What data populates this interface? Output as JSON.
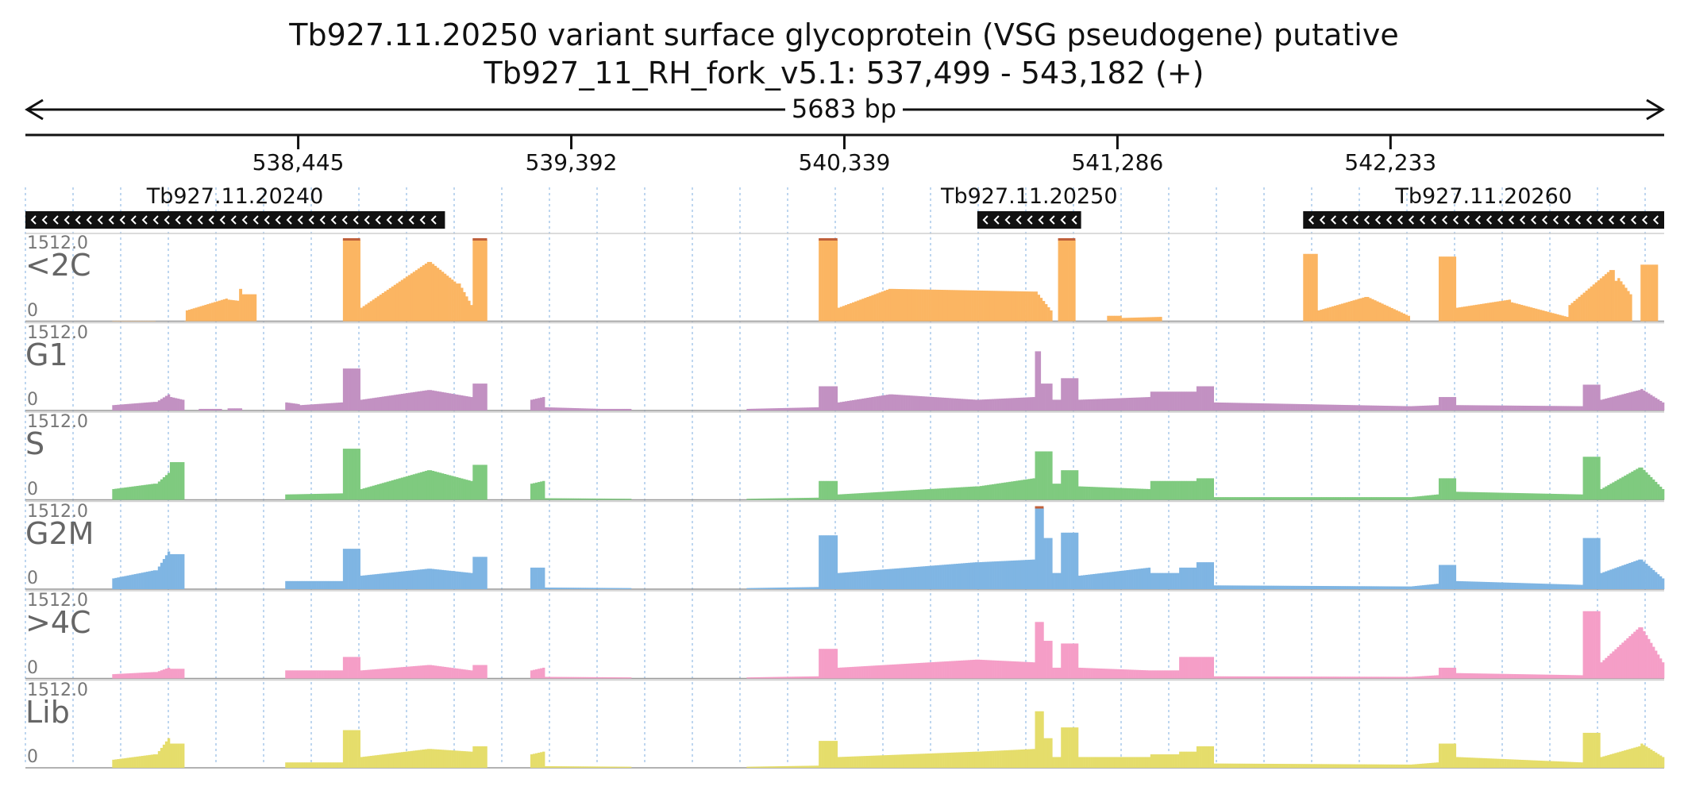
{
  "title": "Tb927.11.20250  variant surface glycoprotein (VSG  pseudogene)  putative",
  "subtitle": "Tb927_11_RH_fork_v5.1: 537,499 - 543,182 (+)",
  "chart_data": {
    "type": "area",
    "region": {
      "chromosome": "Tb927_11_RH_fork_v5.1",
      "start": 537499,
      "end": 543182,
      "strand": "+"
    },
    "span_label": "5683 bp",
    "x_ticks": [
      {
        "value": 538445,
        "label": "538,445"
      },
      {
        "value": 539392,
        "label": "539,392"
      },
      {
        "value": 540339,
        "label": "540,339"
      },
      {
        "value": 541286,
        "label": "541,286"
      },
      {
        "value": 542233,
        "label": "542,233"
      }
    ],
    "genes": [
      {
        "name": "Tb927.11.20240",
        "start": 537499,
        "end": 538954,
        "strand": "-"
      },
      {
        "name": "Tb927.11.20250",
        "start": 540800,
        "end": 541160,
        "strand": "-"
      },
      {
        "name": "Tb927.11.20260",
        "start": 541930,
        "end": 543182,
        "strand": "-"
      }
    ],
    "ylim": [
      0,
      1512.0
    ],
    "y_max_label": "1512.0",
    "y_min_label": "0",
    "series": [
      {
        "name": "<2C",
        "color": "#fbb562",
        "blocks": [
          [
            537800,
            537950,
            5,
            5
          ],
          [
            538050,
            538120,
            5,
            5
          ],
          [
            538050,
            538050,
            0,
            0
          ],
          [
            538055,
            538200,
            200,
            420
          ],
          [
            538200,
            538240,
            400,
            380
          ],
          [
            538240,
            538240,
            300,
            300
          ],
          [
            538240,
            538250,
            600,
            600
          ],
          [
            538250,
            538300,
            500,
            500
          ],
          [
            538600,
            538660,
            1512,
            1512
          ],
          [
            538660,
            538900,
            250,
            1100
          ],
          [
            538900,
            539000,
            1100,
            700
          ],
          [
            539000,
            539050,
            700,
            300
          ],
          [
            539050,
            539100,
            1512,
            1512
          ],
          [
            540250,
            540315,
            1512,
            1512
          ],
          [
            540315,
            540500,
            250,
            600
          ],
          [
            540500,
            541000,
            600,
            550
          ],
          [
            541000,
            541060,
            550,
            200
          ],
          [
            541080,
            541140,
            1512,
            1512
          ],
          [
            541250,
            541300,
            100,
            100
          ],
          [
            541300,
            541440,
            60,
            80
          ],
          [
            541930,
            541980,
            1250,
            1250
          ],
          [
            541980,
            542150,
            200,
            450
          ],
          [
            542150,
            542300,
            450,
            100
          ],
          [
            542400,
            542460,
            1200,
            1200
          ],
          [
            542460,
            542650,
            250,
            400
          ],
          [
            542650,
            542850,
            350,
            80
          ],
          [
            542850,
            543000,
            300,
            950
          ],
          [
            543000,
            543020,
            950,
            750
          ],
          [
            543020,
            543070,
            800,
            500
          ],
          [
            543070,
            543090,
            0,
            0
          ],
          [
            543100,
            543160,
            1050,
            1050
          ]
        ]
      },
      {
        "name": "G1",
        "color": "#c291c2",
        "blocks": [
          [
            537800,
            537950,
            100,
            160
          ],
          [
            537950,
            538000,
            160,
            300
          ],
          [
            538000,
            538050,
            250,
            200
          ],
          [
            538100,
            538180,
            30,
            30
          ],
          [
            538200,
            538250,
            40,
            40
          ],
          [
            538400,
            538450,
            150,
            120
          ],
          [
            538450,
            538600,
            100,
            150
          ],
          [
            538600,
            538660,
            780,
            780
          ],
          [
            538660,
            538900,
            200,
            380
          ],
          [
            538900,
            539050,
            380,
            250
          ],
          [
            539050,
            539100,
            500,
            500
          ],
          [
            539250,
            539300,
            200,
            250
          ],
          [
            539300,
            539500,
            60,
            30
          ],
          [
            539500,
            539600,
            30,
            30
          ],
          [
            540000,
            540250,
            30,
            60
          ],
          [
            540250,
            540315,
            450,
            450
          ],
          [
            540315,
            540500,
            150,
            300
          ],
          [
            540500,
            540800,
            300,
            200
          ],
          [
            540800,
            541000,
            200,
            250
          ],
          [
            541000,
            541020,
            1100,
            1100
          ],
          [
            541020,
            541060,
            500,
            500
          ],
          [
            541060,
            541090,
            200,
            200
          ],
          [
            541090,
            541150,
            600,
            600
          ],
          [
            541150,
            541400,
            200,
            250
          ],
          [
            541400,
            541500,
            350,
            350
          ],
          [
            541500,
            541560,
            350,
            350
          ],
          [
            541560,
            541620,
            450,
            450
          ],
          [
            541620,
            542300,
            150,
            80
          ],
          [
            542300,
            542400,
            80,
            100
          ],
          [
            542400,
            542460,
            250,
            250
          ],
          [
            542460,
            542900,
            100,
            80
          ],
          [
            542900,
            542960,
            480,
            480
          ],
          [
            542960,
            543100,
            200,
            380
          ],
          [
            543100,
            543182,
            400,
            150
          ]
        ]
      },
      {
        "name": "S",
        "color": "#7fca7f",
        "blocks": [
          [
            537800,
            537950,
            200,
            300
          ],
          [
            537950,
            538000,
            300,
            500
          ],
          [
            538000,
            538050,
            700,
            700
          ],
          [
            538400,
            538600,
            100,
            120
          ],
          [
            538600,
            538660,
            950,
            950
          ],
          [
            538660,
            538900,
            200,
            550
          ],
          [
            538900,
            539050,
            550,
            350
          ],
          [
            539050,
            539100,
            650,
            650
          ],
          [
            539250,
            539300,
            300,
            350
          ],
          [
            539300,
            539600,
            30,
            20
          ],
          [
            540000,
            540250,
            20,
            40
          ],
          [
            540250,
            540315,
            350,
            350
          ],
          [
            540315,
            540800,
            100,
            250
          ],
          [
            540800,
            541000,
            250,
            400
          ],
          [
            541000,
            541060,
            900,
            900
          ],
          [
            541060,
            541090,
            300,
            300
          ],
          [
            541090,
            541150,
            550,
            550
          ],
          [
            541150,
            541400,
            250,
            200
          ],
          [
            541400,
            541500,
            350,
            350
          ],
          [
            541500,
            541560,
            350,
            350
          ],
          [
            541560,
            541620,
            400,
            400
          ],
          [
            541620,
            542300,
            50,
            50
          ],
          [
            542300,
            542400,
            50,
            100
          ],
          [
            542400,
            542460,
            400,
            400
          ],
          [
            542460,
            542900,
            150,
            100
          ],
          [
            542900,
            542960,
            800,
            800
          ],
          [
            542960,
            543100,
            200,
            600
          ],
          [
            543100,
            543182,
            600,
            200
          ]
        ]
      },
      {
        "name": "G2M",
        "color": "#7fb5e3",
        "blocks": [
          [
            537800,
            537950,
            200,
            350
          ],
          [
            537950,
            538000,
            350,
            700
          ],
          [
            538000,
            538050,
            650,
            650
          ],
          [
            538400,
            538600,
            150,
            150
          ],
          [
            538600,
            538660,
            750,
            750
          ],
          [
            538660,
            538900,
            250,
            380
          ],
          [
            538900,
            539050,
            380,
            300
          ],
          [
            539050,
            539100,
            600,
            600
          ],
          [
            539250,
            539300,
            400,
            400
          ],
          [
            539300,
            539600,
            30,
            20
          ],
          [
            540000,
            540250,
            20,
            40
          ],
          [
            540250,
            540315,
            1000,
            1000
          ],
          [
            540315,
            540800,
            300,
            500
          ],
          [
            540800,
            541000,
            500,
            550
          ],
          [
            541000,
            541030,
            1512,
            1512
          ],
          [
            541030,
            541060,
            950,
            950
          ],
          [
            541060,
            541090,
            300,
            300
          ],
          [
            541090,
            541150,
            1050,
            1050
          ],
          [
            541150,
            541400,
            250,
            400
          ],
          [
            541400,
            541500,
            300,
            300
          ],
          [
            541500,
            541560,
            400,
            400
          ],
          [
            541560,
            541620,
            500,
            500
          ],
          [
            541620,
            542300,
            70,
            50
          ],
          [
            542300,
            542400,
            50,
            100
          ],
          [
            542400,
            542460,
            450,
            450
          ],
          [
            542460,
            542900,
            150,
            80
          ],
          [
            542900,
            542960,
            950,
            950
          ],
          [
            542960,
            543100,
            300,
            550
          ],
          [
            543100,
            543182,
            550,
            200
          ]
        ]
      },
      {
        "name": ">4C",
        "color": "#f59ec7",
        "blocks": [
          [
            537800,
            537950,
            80,
            120
          ],
          [
            537950,
            538000,
            120,
            200
          ],
          [
            538000,
            538050,
            180,
            180
          ],
          [
            538400,
            538600,
            150,
            150
          ],
          [
            538600,
            538660,
            400,
            400
          ],
          [
            538660,
            538900,
            150,
            250
          ],
          [
            538900,
            539050,
            250,
            150
          ],
          [
            539050,
            539100,
            250,
            250
          ],
          [
            539250,
            539300,
            150,
            200
          ],
          [
            539300,
            539600,
            30,
            20
          ],
          [
            540000,
            540250,
            20,
            40
          ],
          [
            540250,
            540315,
            550,
            550
          ],
          [
            540315,
            540800,
            200,
            350
          ],
          [
            540800,
            541000,
            350,
            300
          ],
          [
            541000,
            541030,
            1050,
            1050
          ],
          [
            541030,
            541060,
            700,
            700
          ],
          [
            541060,
            541090,
            200,
            200
          ],
          [
            541090,
            541150,
            650,
            650
          ],
          [
            541150,
            541400,
            200,
            150
          ],
          [
            541400,
            541500,
            150,
            150
          ],
          [
            541500,
            541560,
            400,
            400
          ],
          [
            541560,
            541620,
            400,
            400
          ],
          [
            541620,
            542300,
            40,
            30
          ],
          [
            542300,
            542400,
            30,
            60
          ],
          [
            542400,
            542460,
            200,
            200
          ],
          [
            542460,
            542900,
            100,
            60
          ],
          [
            542900,
            542960,
            1250,
            1250
          ],
          [
            542960,
            543100,
            300,
            950
          ],
          [
            543100,
            543182,
            950,
            300
          ]
        ]
      },
      {
        "name": "Lib",
        "color": "#e5dd6b",
        "blocks": [
          [
            537800,
            537950,
            150,
            250
          ],
          [
            537950,
            538000,
            250,
            550
          ],
          [
            538000,
            538050,
            450,
            450
          ],
          [
            538400,
            538600,
            100,
            100
          ],
          [
            538600,
            538660,
            700,
            700
          ],
          [
            538660,
            538900,
            200,
            350
          ],
          [
            538900,
            539050,
            350,
            300
          ],
          [
            539050,
            539100,
            400,
            400
          ],
          [
            539250,
            539300,
            250,
            300
          ],
          [
            539300,
            539600,
            30,
            20
          ],
          [
            540000,
            540250,
            20,
            40
          ],
          [
            540250,
            540315,
            500,
            500
          ],
          [
            540315,
            540800,
            200,
            300
          ],
          [
            540800,
            541000,
            300,
            350
          ],
          [
            541000,
            541030,
            1050,
            1050
          ],
          [
            541030,
            541060,
            550,
            550
          ],
          [
            541060,
            541090,
            200,
            200
          ],
          [
            541090,
            541150,
            750,
            750
          ],
          [
            541150,
            541400,
            200,
            200
          ],
          [
            541400,
            541500,
            250,
            250
          ],
          [
            541500,
            541560,
            300,
            300
          ],
          [
            541560,
            541620,
            400,
            400
          ],
          [
            541620,
            542300,
            80,
            60
          ],
          [
            542300,
            542400,
            60,
            100
          ],
          [
            542400,
            542460,
            450,
            450
          ],
          [
            542460,
            542900,
            200,
            100
          ],
          [
            542900,
            542960,
            650,
            650
          ],
          [
            542960,
            543100,
            200,
            400
          ],
          [
            543100,
            543182,
            450,
            200
          ]
        ]
      }
    ],
    "grid": true
  }
}
